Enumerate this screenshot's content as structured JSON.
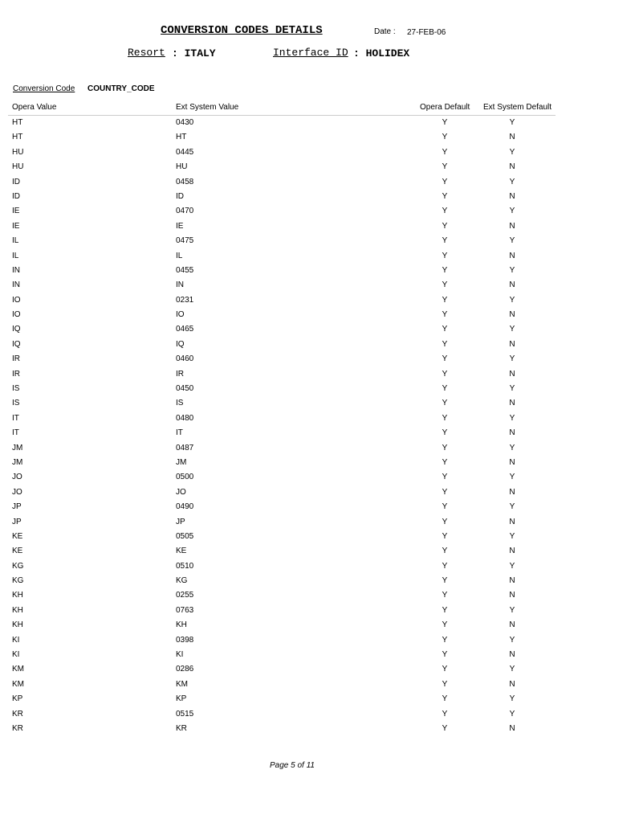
{
  "header": {
    "title": "CONVERSION CODES DETAILS",
    "date_label": "Date :",
    "date": "27-FEB-06",
    "resort_label": "Resort",
    "resort": ": ITALY",
    "interface_label": "Interface ID",
    "interface": ": HOLIDEX"
  },
  "conversion": {
    "label": "Conversion Code",
    "value": "COUNTRY_CODE"
  },
  "table": {
    "columns": [
      "Opera Value",
      "Ext System Value",
      "Opera Default",
      "Ext System Default"
    ],
    "rows": [
      [
        "HT",
        "0430",
        "Y",
        "Y"
      ],
      [
        "HT",
        "HT",
        "Y",
        "N"
      ],
      [
        "HU",
        "0445",
        "Y",
        "Y"
      ],
      [
        "HU",
        "HU",
        "Y",
        "N"
      ],
      [
        "ID",
        "0458",
        "Y",
        "Y"
      ],
      [
        "ID",
        "ID",
        "Y",
        "N"
      ],
      [
        "IE",
        "0470",
        "Y",
        "Y"
      ],
      [
        "IE",
        "IE",
        "Y",
        "N"
      ],
      [
        "IL",
        "0475",
        "Y",
        "Y"
      ],
      [
        "IL",
        "IL",
        "Y",
        "N"
      ],
      [
        "IN",
        "0455",
        "Y",
        "Y"
      ],
      [
        "IN",
        "IN",
        "Y",
        "N"
      ],
      [
        "IO",
        "0231",
        "Y",
        "Y"
      ],
      [
        "IO",
        "IO",
        "Y",
        "N"
      ],
      [
        "IQ",
        "0465",
        "Y",
        "Y"
      ],
      [
        "IQ",
        "IQ",
        "Y",
        "N"
      ],
      [
        "IR",
        "0460",
        "Y",
        "Y"
      ],
      [
        "IR",
        "IR",
        "Y",
        "N"
      ],
      [
        "IS",
        "0450",
        "Y",
        "Y"
      ],
      [
        "IS",
        "IS",
        "Y",
        "N"
      ],
      [
        "IT",
        "0480",
        "Y",
        "Y"
      ],
      [
        "IT",
        "IT",
        "Y",
        "N"
      ],
      [
        "JM",
        "0487",
        "Y",
        "Y"
      ],
      [
        "JM",
        "JM",
        "Y",
        "N"
      ],
      [
        "JO",
        "0500",
        "Y",
        "Y"
      ],
      [
        "JO",
        "JO",
        "Y",
        "N"
      ],
      [
        "JP",
        "0490",
        "Y",
        "Y"
      ],
      [
        "JP",
        "JP",
        "Y",
        "N"
      ],
      [
        "KE",
        "0505",
        "Y",
        "Y"
      ],
      [
        "KE",
        "KE",
        "Y",
        "N"
      ],
      [
        "KG",
        "0510",
        "Y",
        "Y"
      ],
      [
        "KG",
        "KG",
        "Y",
        "N"
      ],
      [
        "KH",
        "0255",
        "Y",
        "N"
      ],
      [
        "KH",
        "0763",
        "Y",
        "Y"
      ],
      [
        "KH",
        "KH",
        "Y",
        "N"
      ],
      [
        "KI",
        "0398",
        "Y",
        "Y"
      ],
      [
        "KI",
        "KI",
        "Y",
        "N"
      ],
      [
        "KM",
        "0286",
        "Y",
        "Y"
      ],
      [
        "KM",
        "KM",
        "Y",
        "N"
      ],
      [
        "KP",
        "KP",
        "Y",
        "Y"
      ],
      [
        "KR",
        "0515",
        "Y",
        "Y"
      ],
      [
        "KR",
        "KR",
        "Y",
        "N"
      ]
    ]
  },
  "footer": {
    "page": "Page 5 of 11"
  }
}
